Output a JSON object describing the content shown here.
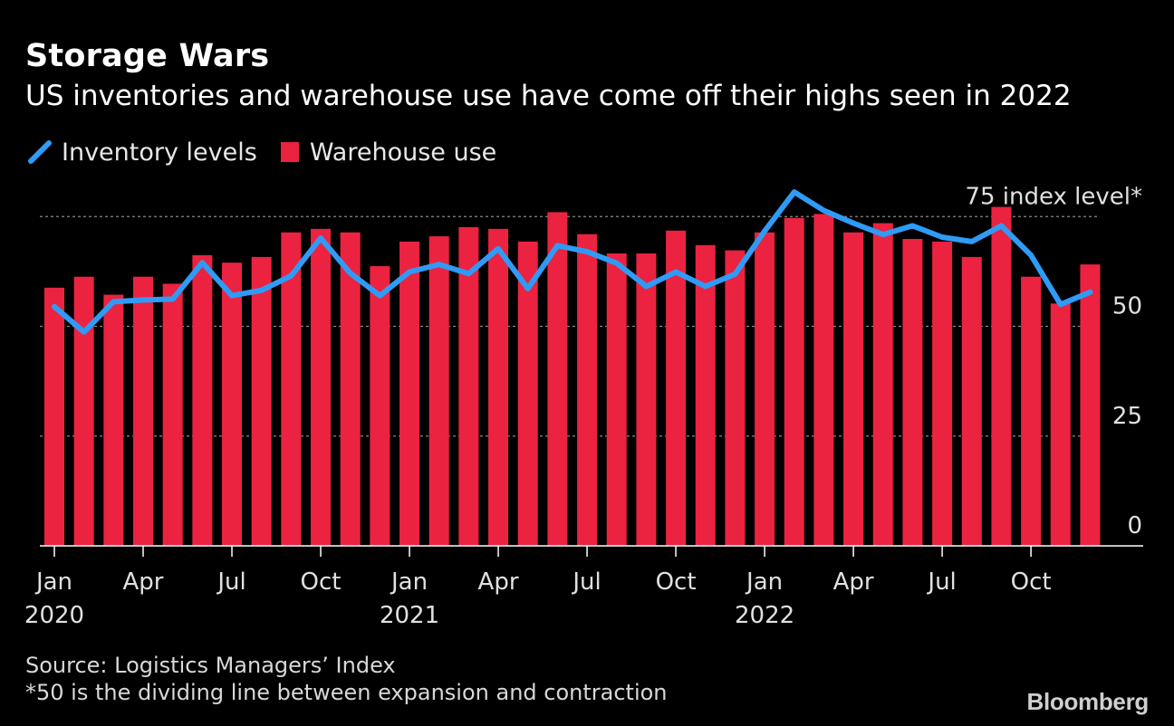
{
  "header": {
    "title": "Storage Wars",
    "subtitle": "US inventories and warehouse use have come off their highs seen in 2022"
  },
  "legend": {
    "line_label": "Inventory levels",
    "bar_label": "Warehouse use"
  },
  "colors": {
    "background": "#000000",
    "bar": "#EB2340",
    "line": "#2F9BF6",
    "grid": "#888888",
    "text": "#FFFFFF"
  },
  "footer": {
    "source": "Source: Logistics Managers’ Index",
    "note": "*50 is the dividing line between expansion and contraction",
    "brand": "Bloomberg"
  },
  "chart_data": {
    "type": "bar",
    "title": "Storage Wars",
    "subtitle": "US inventories and warehouse use have come off their highs seen in 2022",
    "categories": [
      "Jan 2020",
      "Feb 2020",
      "Mar 2020",
      "Apr 2020",
      "May 2020",
      "Jun 2020",
      "Jul 2020",
      "Aug 2020",
      "Sep 2020",
      "Oct 2020",
      "Nov 2020",
      "Dec 2020",
      "Jan 2021",
      "Feb 2021",
      "Mar 2021",
      "Apr 2021",
      "May 2021",
      "Jun 2021",
      "Jul 2021",
      "Aug 2021",
      "Sep 2021",
      "Oct 2021",
      "Nov 2021",
      "Dec 2021",
      "Jan 2022",
      "Feb 2022",
      "Mar 2022",
      "Apr 2022",
      "May 2022",
      "Jun 2022",
      "Jul 2022",
      "Aug 2022",
      "Sep 2022",
      "Oct 2022",
      "Nov 2022",
      "Dec 2022"
    ],
    "series": [
      {
        "name": "Warehouse use",
        "kind": "bar",
        "values": [
          58.8,
          61.3,
          57.2,
          61.3,
          59.7,
          66.2,
          64.5,
          65.8,
          71.4,
          72.2,
          71.4,
          63.7,
          69.3,
          70.5,
          72.6,
          72.2,
          69.3,
          76.0,
          71.0,
          66.6,
          66.6,
          71.8,
          68.5,
          67.3,
          71.4,
          74.7,
          75.6,
          71.4,
          73.5,
          69.9,
          69.3,
          65.8,
          77.2,
          61.3,
          55.2,
          64.1
        ]
      },
      {
        "name": "Inventory levels",
        "kind": "line",
        "values": [
          54.5,
          48.7,
          55.6,
          56.0,
          56.2,
          64.5,
          57.0,
          58.2,
          61.5,
          70.1,
          62.1,
          57.0,
          62.4,
          64.1,
          62.0,
          67.7,
          58.6,
          68.4,
          67.0,
          64.4,
          59.1,
          62.4,
          59.1,
          61.9,
          71.7,
          80.6,
          76.4,
          73.5,
          70.9,
          72.9,
          70.3,
          69.3,
          72.9,
          66.2,
          55.0,
          57.8
        ]
      }
    ],
    "xticks": [
      {
        "month": "Jan",
        "year": "2020",
        "index": 0
      },
      {
        "month": "Apr",
        "year": "",
        "index": 3
      },
      {
        "month": "Jul",
        "year": "",
        "index": 6
      },
      {
        "month": "Oct",
        "year": "",
        "index": 9
      },
      {
        "month": "Jan",
        "year": "2021",
        "index": 12
      },
      {
        "month": "Apr",
        "year": "",
        "index": 15
      },
      {
        "month": "Jul",
        "year": "",
        "index": 18
      },
      {
        "month": "Oct",
        "year": "",
        "index": 21
      },
      {
        "month": "Jan",
        "year": "2022",
        "index": 24
      },
      {
        "month": "Apr",
        "year": "",
        "index": 27
      },
      {
        "month": "Jul",
        "year": "",
        "index": 30
      },
      {
        "month": "Oct",
        "year": "",
        "index": 33
      }
    ],
    "yticks": [
      {
        "value": 0,
        "label": "0"
      },
      {
        "value": 25,
        "label": "25"
      },
      {
        "value": 50,
        "label": "50"
      },
      {
        "value": 75,
        "label": "75 index level*"
      }
    ],
    "ylim": [
      0,
      82
    ],
    "xlabel": "",
    "ylabel": "",
    "grid": true,
    "legend_position": "top-left"
  }
}
